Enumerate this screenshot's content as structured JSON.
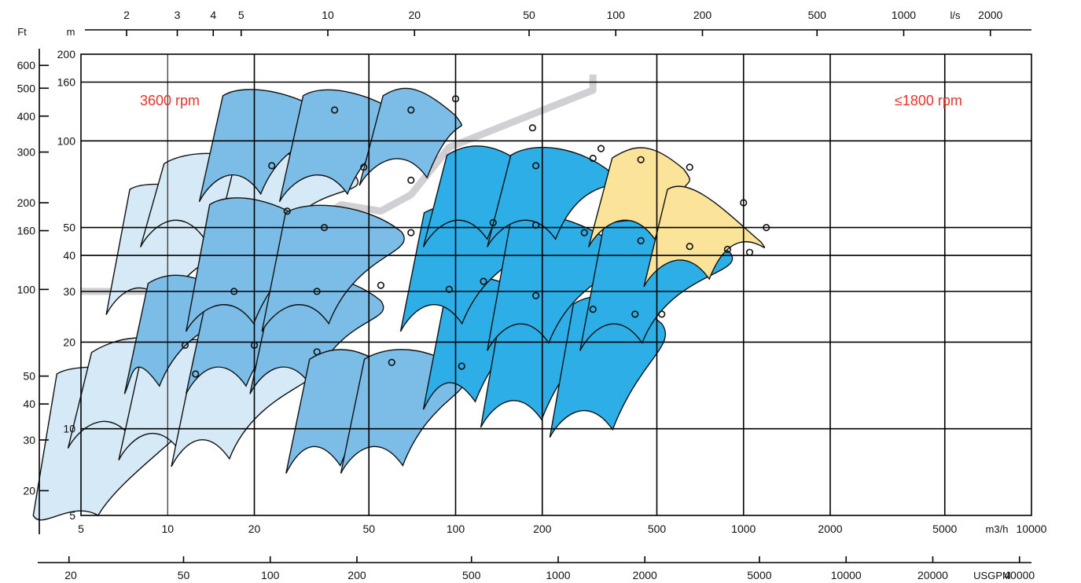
{
  "chart_data": {
    "type": "area",
    "title": "",
    "x_axes": {
      "flow_m3h": {
        "unit": "m3/h",
        "scale": "log",
        "ticks": [
          5,
          10,
          20,
          50,
          100,
          200,
          500,
          1000,
          2000,
          5000,
          10000
        ],
        "tick_labels": [
          "5",
          "10",
          "20",
          "50",
          "100",
          "200",
          "500",
          "1000",
          "2000",
          "5000",
          "10000"
        ]
      },
      "flow_ls": {
        "unit": "l/s",
        "scale": "log",
        "ticks": [
          2,
          3,
          4,
          5,
          10,
          20,
          50,
          100,
          200,
          500,
          1000,
          2000
        ],
        "tick_labels": [
          "2",
          "3",
          "4",
          "5",
          "10",
          "20",
          "50",
          "100",
          "200",
          "500",
          "1000",
          "2000"
        ]
      },
      "flow_usgpm": {
        "unit": "USGPM",
        "scale": "log",
        "ticks": [
          20,
          50,
          100,
          200,
          500,
          1000,
          2000,
          5000,
          10000,
          20000,
          40000
        ],
        "tick_labels": [
          "20",
          "50",
          "100",
          "200",
          "500",
          "1000",
          "2000",
          "5000",
          "10000",
          "20000",
          "40000"
        ]
      }
    },
    "y_axes": {
      "head_m": {
        "unit": "m",
        "scale": "log",
        "ylim": [
          5,
          200
        ],
        "ticks": [
          5,
          10,
          20,
          30,
          40,
          50,
          100,
          160,
          200
        ],
        "tick_labels": [
          "5",
          "10",
          "20",
          "30",
          "40",
          "50",
          "100",
          "160",
          "200"
        ]
      },
      "head_ft": {
        "unit": "Ft",
        "scale": "log",
        "ticks": [
          20,
          30,
          40,
          50,
          100,
          160,
          200,
          300,
          400,
          500,
          600
        ],
        "tick_labels": [
          "20",
          "30",
          "40",
          "50",
          "100",
          "160",
          "200",
          "300",
          "400",
          "500",
          "600"
        ]
      }
    },
    "grid": true,
    "annotations": [
      {
        "text": "3600 rpm",
        "color": "#e4352c",
        "placement": "top-left"
      },
      {
        "text": "≤1800 rpm",
        "color": "#e4352c",
        "placement": "top-right"
      }
    ],
    "colors": {
      "light": "#d6e9f7",
      "medium": "#7bbde6",
      "strong": "#2eaee6",
      "yellow": "#fbe39a",
      "separator": "#d0d0d4",
      "annotation": "#e4352c"
    },
    "series": [
      {
        "fill": "light",
        "x": [
          5.3,
          13,
          4.9
        ],
        "head_m": [
          16,
          14,
          5
        ]
      },
      {
        "fill": "light",
        "x": [
          7,
          11.5,
          6.5
        ],
        "head_m": [
          19,
          19.5,
          11
        ]
      },
      {
        "fill": "light",
        "x": [
          10.5,
          21,
          9.5
        ],
        "head_m": [
          19,
          19,
          10
        ]
      },
      {
        "fill": "light",
        "x": [
          16,
          33,
          14
        ],
        "head_m": [
          19,
          18.5,
          9.5
        ]
      },
      {
        "fill": "light",
        "x": [
          9.5,
          25,
          8.5
        ],
        "head_m": [
          70,
          57,
          32
        ]
      },
      {
        "fill": "light",
        "x": [
          12.5,
          23,
          11.5
        ],
        "head_m": [
          86,
          82,
          55
        ]
      },
      {
        "fill": "light",
        "x": [
          22,
          45,
          20
        ],
        "head_m": [
          86,
          81,
          50
        ]
      },
      {
        "fill": "medium",
        "x": [
          11,
          17,
          8
        ],
        "head_m": [
          33,
          30,
          17
        ]
      },
      {
        "fill": "medium",
        "x": [
          18,
          33,
          16
        ],
        "head_m": [
          33,
          30,
          17
        ]
      },
      {
        "fill": "medium",
        "x": [
          30,
          55,
          27
        ],
        "head_m": [
          33,
          30,
          17
        ]
      },
      {
        "fill": "medium",
        "x": [
          40,
          60,
          34
        ],
        "head_m": [
          18,
          17,
          9
        ]
      },
      {
        "fill": "medium",
        "x": [
          62,
          105,
          56
        ],
        "head_m": [
          18,
          17,
          9
        ]
      },
      {
        "fill": "medium",
        "x": [
          18,
          32,
          17
        ],
        "head_m": [
          62,
          54,
          28
        ]
      },
      {
        "fill": "medium",
        "x": [
          33,
          65,
          31
        ],
        "head_m": [
          58,
          52,
          28
        ]
      },
      {
        "fill": "medium",
        "x": [
          20,
          38,
          18
        ],
        "head_m": [
          148,
          127,
          79
        ]
      },
      {
        "fill": "medium",
        "x": [
          38,
          70,
          36
        ],
        "head_m": [
          148,
          125,
          79
        ]
      },
      {
        "fill": "medium",
        "x": [
          72,
          100,
          68
        ],
        "head_m": [
          148,
          132,
          90
        ]
      },
      {
        "fill": "strong",
        "x": [
          120,
          185,
          100
        ],
        "head_m": [
          32,
          30,
          15
        ]
      },
      {
        "fill": "strong",
        "x": [
          190,
          300,
          170
        ],
        "head_m": [
          31,
          26,
          13
        ]
      },
      {
        "fill": "strong",
        "x": [
          330,
          520,
          300
        ],
        "head_m": [
          28,
          25,
          12
        ]
      },
      {
        "fill": "strong",
        "x": [
          100,
          190,
          90
        ],
        "head_m": [
          58,
          52,
          28
        ]
      },
      {
        "fill": "strong",
        "x": [
          200,
          380,
          180
        ],
        "head_m": [
          55,
          45,
          24
        ]
      },
      {
        "fill": "strong",
        "x": [
          420,
          900,
          380
        ],
        "head_m": [
          52,
          44,
          24
        ]
      },
      {
        "fill": "strong",
        "x": [
          120,
          180,
          110
        ],
        "head_m": [
          92,
          86,
          55
        ]
      },
      {
        "fill": "strong",
        "x": [
          200,
          350,
          190
        ],
        "head_m": [
          92,
          83,
          55
        ]
      },
      {
        "fill": "yellow",
        "x": [
          450,
          620,
          420
        ],
        "head_m": [
          90,
          86,
          55
        ]
      },
      {
        "fill": "yellow",
        "x": [
          700,
          1150,
          650
        ],
        "head_m": [
          70,
          48,
          40
        ]
      }
    ],
    "bep_points": [
      {
        "x": 11.5,
        "head_m": 19.5
      },
      {
        "x": 12.5,
        "head_m": 15.5
      },
      {
        "x": 20,
        "head_m": 19.5
      },
      {
        "x": 33,
        "head_m": 18.5
      },
      {
        "x": 60,
        "head_m": 17
      },
      {
        "x": 105,
        "head_m": 16.5
      },
      {
        "x": 17,
        "head_m": 30
      },
      {
        "x": 33,
        "head_m": 30
      },
      {
        "x": 55,
        "head_m": 31.5
      },
      {
        "x": 95,
        "head_m": 30.5
      },
      {
        "x": 125,
        "head_m": 32.5
      },
      {
        "x": 190,
        "head_m": 29
      },
      {
        "x": 300,
        "head_m": 26
      },
      {
        "x": 420,
        "head_m": 25
      },
      {
        "x": 520,
        "head_m": 25
      },
      {
        "x": 26,
        "head_m": 57
      },
      {
        "x": 35,
        "head_m": 50
      },
      {
        "x": 70,
        "head_m": 48
      },
      {
        "x": 135,
        "head_m": 52
      },
      {
        "x": 190,
        "head_m": 51
      },
      {
        "x": 280,
        "head_m": 48
      },
      {
        "x": 440,
        "head_m": 45
      },
      {
        "x": 650,
        "head_m": 43
      },
      {
        "x": 880,
        "head_m": 42
      },
      {
        "x": 1050,
        "head_m": 41
      },
      {
        "x": 23,
        "head_m": 82
      },
      {
        "x": 48,
        "head_m": 81
      },
      {
        "x": 70,
        "head_m": 73
      },
      {
        "x": 38,
        "head_m": 128
      },
      {
        "x": 70,
        "head_m": 128
      },
      {
        "x": 100,
        "head_m": 140
      },
      {
        "x": 185,
        "head_m": 111
      },
      {
        "x": 190,
        "head_m": 82
      },
      {
        "x": 300,
        "head_m": 87
      },
      {
        "x": 320,
        "head_m": 94
      },
      {
        "x": 440,
        "head_m": 86
      },
      {
        "x": 650,
        "head_m": 81
      },
      {
        "x": 1000,
        "head_m": 61
      },
      {
        "x": 1200,
        "head_m": 50
      }
    ]
  }
}
